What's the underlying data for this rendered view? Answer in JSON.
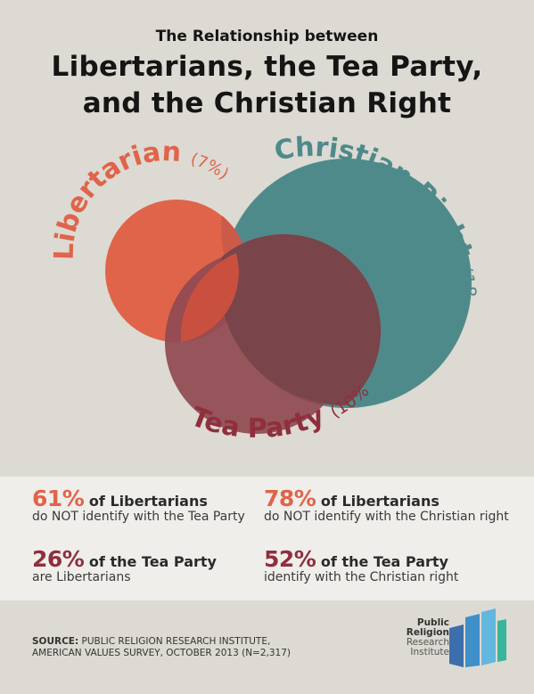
{
  "header": {
    "subtitle": "The Relationship between",
    "title_line1": "Libertarians, the Tea Party,",
    "title_line2": "and the Christian Right"
  },
  "venn": {
    "sets": [
      {
        "name": "Libertarian",
        "pct": "(7%)",
        "color": "#e0644a"
      },
      {
        "name": "Christian Right",
        "pct": "(18%)",
        "color": "#4f8a8b"
      },
      {
        "name": "Tea Party",
        "pct": "(10%)",
        "color": "#8f3f4b"
      }
    ]
  },
  "stats": [
    {
      "pct": "61%",
      "bold": "of Libertarians",
      "line2": "do NOT identify with the Tea Party",
      "color": "#e0644a"
    },
    {
      "pct": "78%",
      "bold": "of Libertarians",
      "line2": "do NOT identify with the Christian right",
      "color": "#e0644a"
    },
    {
      "pct": "26%",
      "bold": "of the Tea Party",
      "line2": "are Libertarians",
      "color": "#8f2f3e"
    },
    {
      "pct": "52%",
      "bold": "of the Tea Party",
      "line2": "identify with the Christian right",
      "color": "#8f2f3e"
    }
  ],
  "footer": {
    "source_label": "SOURCE:",
    "source_line1": "PUBLIC RELIGION RESEARCH INSTITUTE,",
    "source_line2": "AMERICAN VALUES SURVEY, OCTOBER 2013 (N=2,317)",
    "logo_line1": "Public",
    "logo_line2": "Religion",
    "logo_line3": "Research",
    "logo_line4": "Institute"
  }
}
